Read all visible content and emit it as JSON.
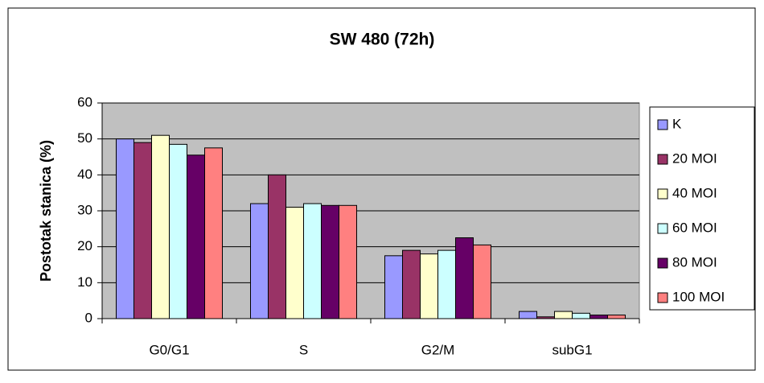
{
  "chart_data": {
    "type": "bar",
    "title": "SW 480 (72h)",
    "y_label": "Postotak stanica (%)",
    "categories": [
      "G0/G1",
      "S",
      "G2/M",
      "subG1"
    ],
    "series": [
      {
        "name": "K",
        "color": "#9999ff",
        "values": [
          50,
          32,
          17.5,
          2
        ]
      },
      {
        "name": "20 MOI",
        "color": "#993366",
        "values": [
          49,
          40,
          19,
          0.5
        ]
      },
      {
        "name": "40 MOI",
        "color": "#ffffcc",
        "values": [
          51,
          31,
          18,
          2
        ]
      },
      {
        "name": "60 MOI",
        "color": "#ccffff",
        "values": [
          48.5,
          32,
          19,
          1.5
        ]
      },
      {
        "name": "80 MOI",
        "color": "#660066",
        "values": [
          45.5,
          31.5,
          22.5,
          1
        ]
      },
      {
        "name": "100 MOI",
        "color": "#ff8080",
        "values": [
          47.5,
          31.5,
          20.5,
          1
        ]
      }
    ],
    "ylim": [
      0,
      60
    ],
    "yticks": [
      0,
      10,
      20,
      30,
      40,
      50,
      60
    ],
    "grid": true,
    "legend": "right"
  }
}
